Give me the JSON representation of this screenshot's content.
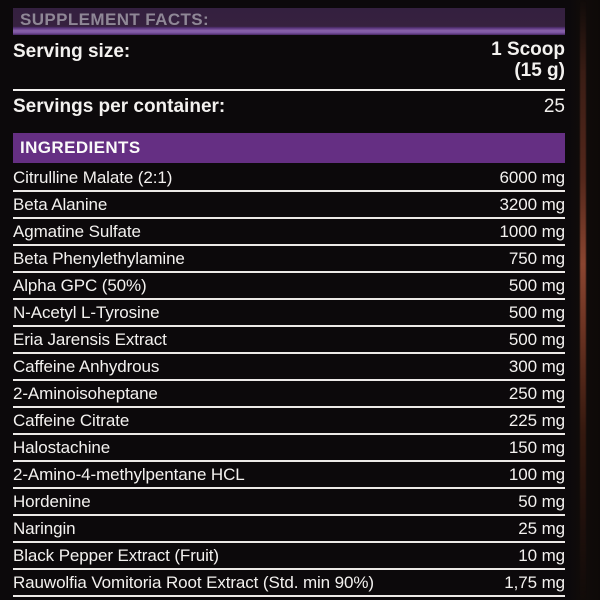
{
  "colors": {
    "background": "#0c090b",
    "facts_bar_dark_purple": "#34203f",
    "facts_bar_light_purple": "#8a63ab",
    "facts_title_text": "#8f8796",
    "ingredients_bar_purple": "#652f83",
    "body_text_white": "#f3f1ef",
    "row_divider_white": "#ece9e7",
    "bottle_edge_streak": "#8a4530"
  },
  "header": {
    "title": "SUPPLEMENT FACTS:"
  },
  "serving": {
    "size_label": "Serving size:",
    "size_value_line1": "1 Scoop",
    "size_value_line2": "(15 g)",
    "per_container_label": "Servings per container:",
    "per_container_value": "25"
  },
  "ingredients": {
    "section_title": "INGREDIENTS",
    "rows": [
      {
        "name": "Citrulline Malate (2:1)",
        "amount": "6000 mg"
      },
      {
        "name": "Beta Alanine",
        "amount": "3200 mg"
      },
      {
        "name": "Agmatine Sulfate",
        "amount": "1000 mg"
      },
      {
        "name": "Beta Phenylethylamine",
        "amount": "750 mg"
      },
      {
        "name": "Alpha GPC (50%)",
        "amount": "500 mg"
      },
      {
        "name": "N-Acetyl L-Tyrosine",
        "amount": "500 mg"
      },
      {
        "name": "Eria Jarensis Extract",
        "amount": "500 mg"
      },
      {
        "name": "Caffeine Anhydrous",
        "amount": "300 mg"
      },
      {
        "name": "2-Aminoisoheptane",
        "amount": "250 mg"
      },
      {
        "name": "Caffeine Citrate",
        "amount": "225 mg"
      },
      {
        "name": "Halostachine",
        "amount": "150 mg"
      },
      {
        "name": "2-Amino-4-methylpentane HCL",
        "amount": "100 mg"
      },
      {
        "name": "Hordenine",
        "amount": "50 mg"
      },
      {
        "name": "Naringin",
        "amount": "25 mg"
      },
      {
        "name": "Black Pepper Extract (Fruit)",
        "amount": "10 mg"
      },
      {
        "name": "Rauwolfia Vomitoria Root Extract (Std. min 90%)",
        "amount": "1,75 mg"
      }
    ]
  }
}
